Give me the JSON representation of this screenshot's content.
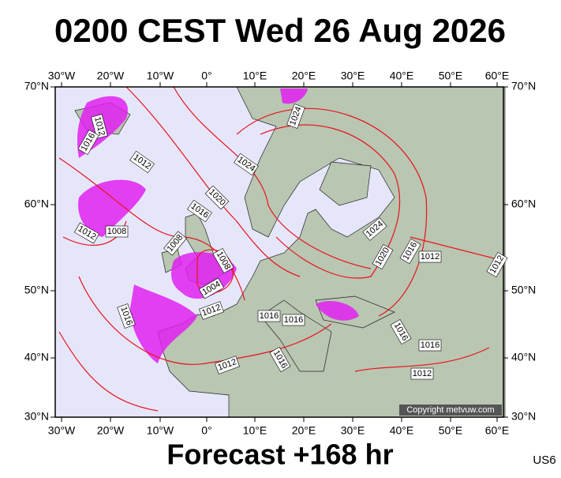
{
  "header": {
    "title": "0200 CEST Wed 26 Aug 2026"
  },
  "map": {
    "lon_labels": [
      "30°W",
      "20°W",
      "10°W",
      "0°",
      "10°E",
      "20°E",
      "30°E",
      "40°E",
      "50°E",
      "60°E"
    ],
    "lat_labels": [
      "70°N",
      "60°N",
      "50°N",
      "40°N",
      "30°N"
    ],
    "isobar_labels": [
      "1012",
      "1016",
      "1012",
      "1008",
      "1012",
      "1016",
      "1020",
      "1024",
      "1024",
      "1008",
      "1008",
      "1004",
      "1012",
      "1016",
      "1016",
      "1016",
      "1024",
      "1020",
      "1016",
      "1012",
      "1012",
      "1016",
      "1016",
      "1012",
      "1016",
      "1012"
    ],
    "copyright": "Copyright metvuw.com"
  },
  "footer": {
    "forecast": "Forecast +168 hr",
    "code": "US6"
  }
}
